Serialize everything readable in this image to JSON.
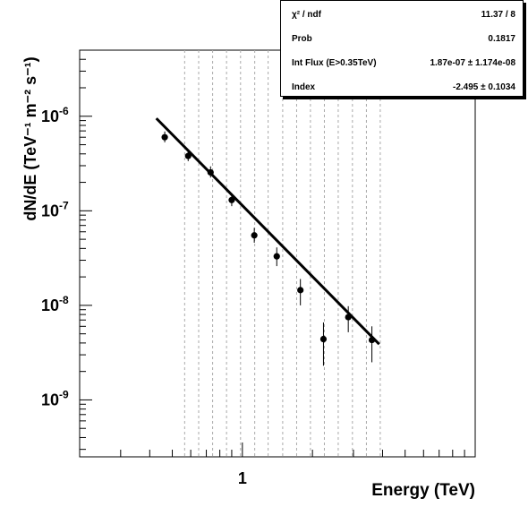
{
  "chart_data": {
    "type": "scatter",
    "xlabel": "Energy (TeV)",
    "ylabel": "dN/dE (TeV⁻¹ m⁻² s⁻¹)",
    "x_scale": "log",
    "y_scale": "log",
    "xlim": [
      0.2,
      10
    ],
    "ylim": [
      2.5e-10,
      5e-06
    ],
    "x_tick_labels": [
      "1"
    ],
    "y_tick_labels": [
      {
        "value": 1e-06,
        "mant": "10",
        "exp": "-6"
      },
      {
        "value": 1e-07,
        "mant": "10",
        "exp": "-7"
      },
      {
        "value": 1e-08,
        "mant": "10",
        "exp": "-8"
      },
      {
        "value": 1e-09,
        "mant": "10",
        "exp": "-9"
      }
    ],
    "bin_edges": [
      0.565,
      0.649,
      0.745,
      0.855,
      0.982,
      1.13,
      1.29,
      1.49,
      1.71,
      1.96,
      2.25,
      2.58,
      2.97,
      3.41,
      3.91
    ],
    "points": [
      {
        "x": 0.464,
        "y": 6e-07,
        "ylo": 5.3e-07,
        "yhi": 6.9e-07
      },
      {
        "x": 0.585,
        "y": 3.8e-07,
        "ylo": 3.35e-07,
        "yhi": 4.4e-07
      },
      {
        "x": 0.73,
        "y": 2.55e-07,
        "ylo": 2.25e-07,
        "yhi": 2.95e-07
      },
      {
        "x": 0.9,
        "y": 1.3e-07,
        "ylo": 1.12e-07,
        "yhi": 1.5e-07
      },
      {
        "x": 1.125,
        "y": 5.5e-08,
        "ylo": 4.6e-08,
        "yhi": 6.6e-08
      },
      {
        "x": 1.405,
        "y": 3.3e-08,
        "ylo": 2.6e-08,
        "yhi": 4.1e-08
      },
      {
        "x": 1.775,
        "y": 1.45e-08,
        "ylo": 1e-08,
        "yhi": 1.9e-08
      },
      {
        "x": 2.23,
        "y": 4.4e-09,
        "ylo": 2.3e-09,
        "yhi": 6.6e-09
      },
      {
        "x": 2.85,
        "y": 7.5e-09,
        "ylo": 5.2e-09,
        "yhi": 9.8e-09
      },
      {
        "x": 3.6,
        "y": 4.3e-09,
        "ylo": 2.5e-09,
        "yhi": 6e-09
      }
    ],
    "fit": {
      "index": -2.495,
      "x_range": [
        0.427,
        3.87
      ],
      "y_at_x0": 9.5e-07
    },
    "stats": [
      {
        "key": "χ² / ndf",
        "value": "11.37 / 8"
      },
      {
        "key": "Prob",
        "value": "0.1817"
      },
      {
        "key": "Int Flux (E>0.35TeV)",
        "value": "1.87e-07 ± 1.174e-08"
      },
      {
        "key": "Index",
        "value": "-2.495 ± 0.1034"
      }
    ],
    "grid": "vertical dashed lines at bin edges",
    "legend": "top-right stats box"
  }
}
